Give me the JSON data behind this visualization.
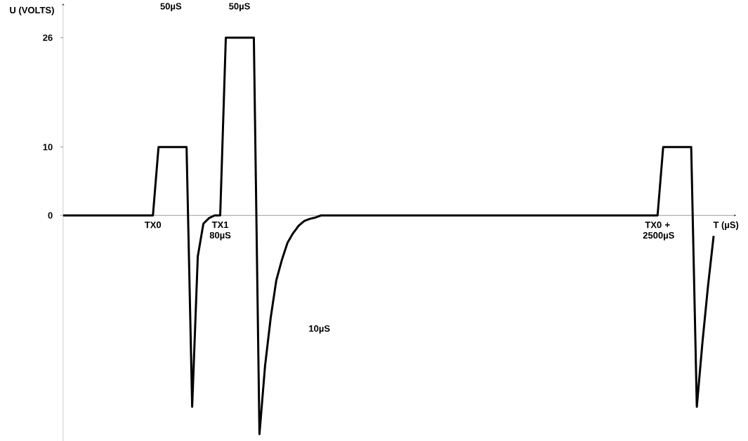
{
  "chart_data": {
    "type": "line",
    "xlabel": "T (µS)",
    "ylabel": "U (VOLTS)",
    "annotations": [
      "50µS",
      "50µS",
      "10µS"
    ],
    "categories": [
      null,
      null,
      null,
      null,
      null,
      null,
      null,
      null,
      null,
      null,
      null,
      null,
      null,
      null,
      null,
      null,
      "TX0",
      null,
      null,
      null,
      null,
      null,
      null,
      null,
      null,
      null,
      null,
      null,
      "TX1 80µS",
      null,
      null,
      null,
      null,
      null,
      null,
      null,
      null,
      null,
      null,
      null,
      null,
      null,
      null,
      null,
      null,
      null,
      null,
      null,
      null,
      null,
      null,
      null,
      null,
      null,
      null,
      null,
      null,
      null,
      null,
      null,
      null,
      null,
      null,
      null,
      null,
      null,
      null,
      null,
      null,
      null,
      null,
      null,
      null,
      null,
      null,
      null,
      null,
      null,
      null,
      null,
      null,
      null,
      null,
      null,
      null,
      null,
      null,
      null,
      null,
      null,
      null,
      null,
      null,
      null,
      null,
      null,
      null,
      null,
      null,
      null,
      null,
      null,
      null,
      null,
      null,
      null,
      "TX0 + 2500µS",
      null,
      null,
      null,
      null,
      null,
      null,
      null,
      null,
      null,
      null,
      null,
      null,
      null
    ],
    "values": [
      0,
      0,
      0,
      0,
      0,
      0,
      0,
      0,
      0,
      0,
      0,
      0,
      0,
      0,
      0,
      0,
      0,
      10,
      10,
      10,
      10,
      10,
      10,
      -28,
      -6,
      -1.2,
      -0.4,
      0,
      0,
      26,
      26,
      26,
      26,
      26,
      26,
      -32,
      -22,
      -15,
      -9.5,
      -6.5,
      -4,
      -2.6,
      -1.5,
      -0.8,
      -0.5,
      -0.3,
      0,
      0,
      0,
      0,
      0,
      0,
      0,
      0,
      0,
      0,
      0,
      0,
      0,
      0,
      0,
      0,
      0,
      0,
      0,
      0,
      0,
      0,
      0,
      0,
      0,
      0,
      0,
      0,
      0,
      0,
      0,
      0,
      0,
      0,
      0,
      0,
      0,
      0,
      0,
      0,
      0,
      0,
      0,
      0,
      0,
      0,
      0,
      0,
      0,
      0,
      0,
      0,
      0,
      0,
      0,
      0,
      0,
      0,
      0,
      0,
      0,
      10,
      10,
      10,
      10,
      10,
      10,
      -28,
      -18.6,
      -10.3,
      -3,
      null,
      null,
      null
    ],
    "color": "#000000",
    "ylim": [
      -33,
      31
    ],
    "yticks": [
      0,
      10,
      26
    ]
  }
}
